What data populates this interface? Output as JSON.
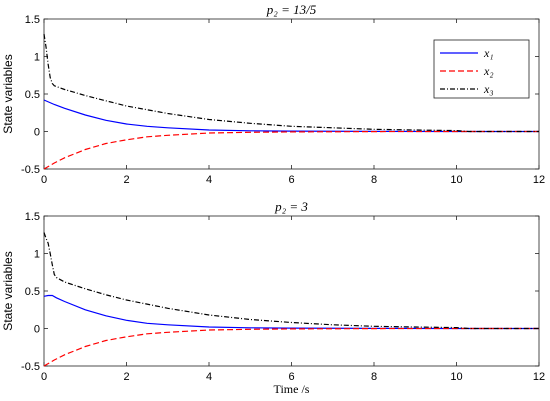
{
  "chart_data": [
    {
      "type": "line",
      "title": "p₂ = 13/5",
      "ylabel": "State variables",
      "xlabel": "",
      "xlim": [
        0,
        12
      ],
      "ylim": [
        -0.5,
        1.5
      ],
      "xticks": [
        "0",
        "2",
        "4",
        "6",
        "8",
        "10",
        "12"
      ],
      "yticks": [
        "-0.5",
        "0",
        "0.5",
        "1",
        "1.5"
      ],
      "legend": {
        "position": "top-right"
      },
      "series": [
        {
          "name": "x₁",
          "color": "#0000ff",
          "style": "solid",
          "x": [
            0,
            0.25,
            0.5,
            1,
            1.5,
            2,
            2.5,
            3,
            4,
            5,
            6,
            8,
            10,
            12
          ],
          "y": [
            0.42,
            0.36,
            0.31,
            0.22,
            0.15,
            0.1,
            0.07,
            0.05,
            0.02,
            0.01,
            0.005,
            0.001,
            0,
            0
          ]
        },
        {
          "name": "x₂",
          "color": "#ff0000",
          "style": "dashed",
          "x": [
            0,
            0.25,
            0.5,
            1,
            1.5,
            2,
            2.5,
            3,
            4,
            5,
            6,
            8,
            10,
            12
          ],
          "y": [
            -0.5,
            -0.42,
            -0.35,
            -0.24,
            -0.16,
            -0.11,
            -0.07,
            -0.05,
            -0.02,
            -0.01,
            -0.005,
            -0.001,
            0,
            0
          ]
        },
        {
          "name": "x₃",
          "color": "#000000",
          "style": "dashdot",
          "x": [
            0,
            0.05,
            0.1,
            0.15,
            0.2,
            0.25,
            0.5,
            1,
            1.5,
            2,
            3,
            4,
            5,
            6,
            7,
            8,
            9,
            10,
            10.3,
            12
          ],
          "y": [
            1.3,
            1.12,
            0.9,
            0.72,
            0.64,
            0.61,
            0.56,
            0.48,
            0.41,
            0.34,
            0.24,
            0.16,
            0.11,
            0.07,
            0.05,
            0.03,
            0.02,
            0.012,
            0.0,
            0.0
          ]
        }
      ]
    },
    {
      "type": "line",
      "title": "p₂ = 3",
      "ylabel": "State variables",
      "xlabel": "Time /s",
      "xlim": [
        0,
        12
      ],
      "ylim": [
        -0.5,
        1.5
      ],
      "xticks": [
        "0",
        "2",
        "4",
        "6",
        "8",
        "10",
        "12"
      ],
      "yticks": [
        "-0.5",
        "0",
        "0.5",
        "1",
        "1.5"
      ],
      "series": [
        {
          "name": "x₁",
          "color": "#0000ff",
          "style": "solid",
          "x": [
            0,
            0.1,
            0.2,
            0.3,
            0.5,
            1,
            1.5,
            2,
            2.5,
            3,
            4,
            5,
            6,
            8,
            10,
            12
          ],
          "y": [
            0.43,
            0.44,
            0.44,
            0.41,
            0.36,
            0.25,
            0.17,
            0.11,
            0.07,
            0.05,
            0.02,
            0.01,
            0.005,
            0.001,
            0,
            0
          ]
        },
        {
          "name": "x₂",
          "color": "#ff0000",
          "style": "dashed",
          "x": [
            0,
            0.25,
            0.5,
            1,
            1.5,
            2,
            2.5,
            3,
            4,
            5,
            6,
            8,
            10,
            12
          ],
          "y": [
            -0.5,
            -0.42,
            -0.35,
            -0.24,
            -0.16,
            -0.11,
            -0.07,
            -0.05,
            -0.02,
            -0.01,
            -0.005,
            -0.001,
            0,
            0
          ]
        },
        {
          "name": "x₃",
          "color": "#000000",
          "style": "dashdot",
          "x": [
            0,
            0.05,
            0.1,
            0.15,
            0.2,
            0.25,
            0.3,
            0.5,
            1,
            1.5,
            2,
            3,
            4,
            5,
            6,
            7,
            8,
            9,
            10,
            10.3,
            12
          ],
          "y": [
            1.28,
            1.2,
            1.14,
            1.0,
            0.85,
            0.72,
            0.68,
            0.62,
            0.53,
            0.45,
            0.38,
            0.27,
            0.18,
            0.12,
            0.08,
            0.05,
            0.03,
            0.02,
            0.012,
            0.0,
            0.0
          ]
        }
      ]
    }
  ]
}
